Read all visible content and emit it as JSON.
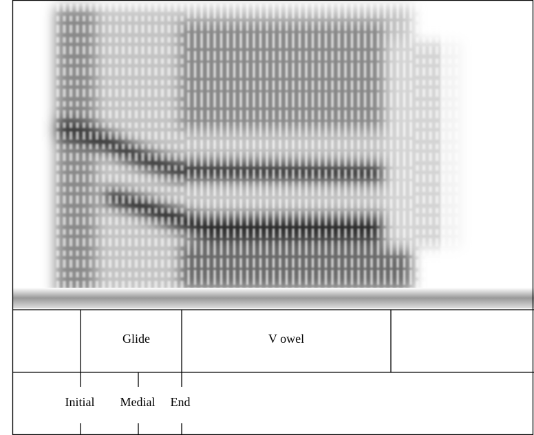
{
  "tiers": [
    {
      "intervals": [
        {
          "label": "Glide"
        },
        {
          "label": "V owel"
        }
      ]
    },
    {
      "points": [
        {
          "label": "Initial"
        },
        {
          "label": "Medial"
        },
        {
          "label": "End"
        }
      ]
    }
  ]
}
